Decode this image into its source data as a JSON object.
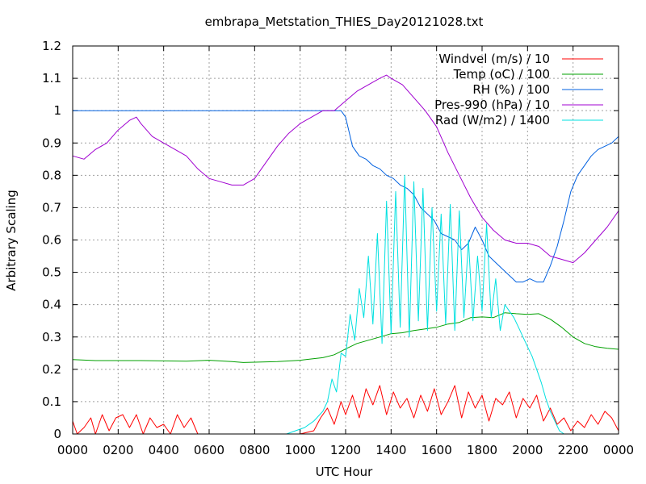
{
  "chart_data": {
    "type": "line",
    "title": "embrapa_Metstation_THIES_Day20121028.txt",
    "xlabel": "UTC Hour",
    "ylabel": "Arbitrary Scaling",
    "xlim": [
      0,
      24
    ],
    "ylim": [
      0,
      1.2
    ],
    "x_ticks": [
      0,
      2,
      4,
      6,
      8,
      10,
      12,
      14,
      16,
      18,
      20,
      22,
      24
    ],
    "x_tick_labels": [
      "0000",
      "0200",
      "0400",
      "0600",
      "0800",
      "1000",
      "1200",
      "1400",
      "1600",
      "1800",
      "2000",
      "2200",
      "0000"
    ],
    "y_ticks": [
      0,
      0.1,
      0.2,
      0.3,
      0.4,
      0.5,
      0.6,
      0.7,
      0.8,
      0.9,
      1,
      1.1,
      1.2
    ],
    "y_tick_labels": [
      "0",
      "0.1",
      "0.2",
      "0.3",
      "0.4",
      "0.5",
      "0.6",
      "0.7",
      "0.8",
      "0.9",
      "1",
      "1.1",
      "1.2"
    ],
    "grid": true,
    "legend_position": "top-right",
    "series": [
      {
        "name": "Windvel (m/s) / 10",
        "color": "#ff0000",
        "x": [
          0,
          0.2,
          0.5,
          0.8,
          1.0,
          1.3,
          1.6,
          1.9,
          2.2,
          2.5,
          2.8,
          3.1,
          3.4,
          3.7,
          4.0,
          4.3,
          4.6,
          4.9,
          5.2,
          5.5,
          6,
          7,
          8,
          9,
          10,
          10.6,
          10.9,
          11.2,
          11.5,
          11.8,
          12.0,
          12.3,
          12.6,
          12.9,
          13.2,
          13.5,
          13.8,
          14.1,
          14.4,
          14.7,
          15.0,
          15.3,
          15.6,
          15.9,
          16.2,
          16.5,
          16.8,
          17.1,
          17.4,
          17.7,
          18.0,
          18.3,
          18.6,
          18.9,
          19.2,
          19.5,
          19.8,
          20.1,
          20.4,
          20.7,
          21.0,
          21.3,
          21.6,
          21.9,
          22.2,
          22.5,
          22.8,
          23.1,
          23.4,
          23.7,
          24
        ],
        "y": [
          0.04,
          0.0,
          0.02,
          0.05,
          0.0,
          0.06,
          0.01,
          0.05,
          0.06,
          0.02,
          0.06,
          0.0,
          0.05,
          0.02,
          0.03,
          0.0,
          0.06,
          0.02,
          0.05,
          0.0,
          0.0,
          0.0,
          0.0,
          0.0,
          0.0,
          0.01,
          0.05,
          0.08,
          0.03,
          0.1,
          0.06,
          0.12,
          0.05,
          0.14,
          0.09,
          0.15,
          0.06,
          0.13,
          0.08,
          0.11,
          0.05,
          0.12,
          0.07,
          0.14,
          0.06,
          0.1,
          0.15,
          0.05,
          0.13,
          0.08,
          0.12,
          0.04,
          0.11,
          0.09,
          0.13,
          0.05,
          0.11,
          0.08,
          0.12,
          0.04,
          0.08,
          0.03,
          0.05,
          0.01,
          0.04,
          0.02,
          0.06,
          0.03,
          0.07,
          0.05,
          0.01
        ]
      },
      {
        "name": "Temp (oC) / 100",
        "color": "#00a000",
        "x": [
          0,
          1,
          2,
          3,
          4,
          5,
          6,
          7,
          7.5,
          8,
          9,
          10,
          11,
          11.5,
          12,
          12.5,
          13,
          13.5,
          14,
          14.5,
          15,
          15.5,
          16,
          16.5,
          17,
          17.5,
          18,
          18.5,
          19,
          19.5,
          20,
          20.5,
          21,
          21.5,
          22,
          22.5,
          23,
          23.5,
          24
        ],
        "y": [
          0.23,
          0.227,
          0.227,
          0.227,
          0.226,
          0.225,
          0.228,
          0.224,
          0.221,
          0.222,
          0.224,
          0.228,
          0.236,
          0.245,
          0.263,
          0.28,
          0.29,
          0.3,
          0.31,
          0.313,
          0.32,
          0.325,
          0.33,
          0.34,
          0.345,
          0.36,
          0.362,
          0.36,
          0.375,
          0.372,
          0.37,
          0.372,
          0.355,
          0.33,
          0.3,
          0.28,
          0.27,
          0.265,
          0.262
        ]
      },
      {
        "name": "RH (%) / 100",
        "color": "#0060e0",
        "x": [
          0,
          2,
          4,
          6,
          8,
          10,
          11.5,
          11.8,
          12.0,
          12.3,
          12.6,
          12.9,
          13.2,
          13.5,
          13.8,
          14.1,
          14.4,
          14.7,
          15.0,
          15.3,
          15.6,
          15.9,
          16.2,
          16.5,
          16.8,
          17.1,
          17.4,
          17.7,
          18.0,
          18.3,
          18.6,
          18.9,
          19.2,
          19.5,
          19.8,
          20.1,
          20.4,
          20.7,
          21.0,
          21.3,
          21.6,
          21.9,
          22.2,
          22.5,
          22.8,
          23.1,
          23.4,
          23.7,
          24
        ],
        "y": [
          1.0,
          1.0,
          1.0,
          1.0,
          1.0,
          1.0,
          1.0,
          1.0,
          0.98,
          0.89,
          0.86,
          0.85,
          0.83,
          0.82,
          0.8,
          0.79,
          0.77,
          0.76,
          0.74,
          0.7,
          0.68,
          0.66,
          0.62,
          0.61,
          0.6,
          0.57,
          0.59,
          0.64,
          0.6,
          0.55,
          0.53,
          0.51,
          0.49,
          0.47,
          0.47,
          0.48,
          0.47,
          0.47,
          0.52,
          0.58,
          0.66,
          0.75,
          0.8,
          0.83,
          0.86,
          0.88,
          0.89,
          0.9,
          0.92
        ]
      },
      {
        "name": "Pres-990 (hPa) / 10",
        "color": "#a000d0",
        "x": [
          0,
          0.5,
          1.0,
          1.5,
          2.0,
          2.5,
          2.8,
          3.0,
          3.5,
          4.0,
          4.5,
          5.0,
          5.5,
          6.0,
          6.5,
          7.0,
          7.5,
          8.0,
          8.5,
          9.0,
          9.5,
          10.0,
          10.5,
          11.0,
          11.5,
          12.0,
          12.5,
          13.0,
          13.5,
          13.8,
          14.0,
          14.5,
          15.0,
          15.5,
          16.0,
          16.5,
          17.0,
          17.5,
          18.0,
          18.5,
          19.0,
          19.5,
          20.0,
          20.5,
          21.0,
          21.5,
          22.0,
          22.5,
          23.0,
          23.5,
          24
        ],
        "y": [
          0.86,
          0.85,
          0.88,
          0.9,
          0.94,
          0.97,
          0.98,
          0.96,
          0.92,
          0.9,
          0.88,
          0.86,
          0.82,
          0.79,
          0.78,
          0.77,
          0.77,
          0.79,
          0.84,
          0.89,
          0.93,
          0.96,
          0.98,
          1.0,
          1.0,
          1.03,
          1.06,
          1.08,
          1.1,
          1.11,
          1.1,
          1.08,
          1.04,
          1.0,
          0.95,
          0.87,
          0.8,
          0.73,
          0.67,
          0.63,
          0.6,
          0.59,
          0.59,
          0.58,
          0.55,
          0.54,
          0.53,
          0.56,
          0.6,
          0.64,
          0.69
        ]
      },
      {
        "name": "Rad (W/m2) / 1400",
        "color": "#00e0e0",
        "x": [
          0,
          9.4,
          9.8,
          10.2,
          10.6,
          11.0,
          11.2,
          11.4,
          11.6,
          11.8,
          12.0,
          12.2,
          12.4,
          12.6,
          12.8,
          13.0,
          13.2,
          13.4,
          13.6,
          13.8,
          14.0,
          14.2,
          14.4,
          14.6,
          14.8,
          15.0,
          15.2,
          15.4,
          15.6,
          15.8,
          16.0,
          16.2,
          16.4,
          16.6,
          16.8,
          17.0,
          17.2,
          17.4,
          17.6,
          17.8,
          18.0,
          18.2,
          18.4,
          18.6,
          18.8,
          19.0,
          19.2,
          19.4,
          19.6,
          19.8,
          20.0,
          20.2,
          20.4,
          20.6,
          20.8,
          21.0,
          21.2,
          21.4,
          21.6,
          24
        ],
        "y": [
          0.0,
          0.0,
          0.01,
          0.02,
          0.04,
          0.07,
          0.1,
          0.17,
          0.13,
          0.25,
          0.24,
          0.37,
          0.29,
          0.45,
          0.36,
          0.55,
          0.34,
          0.62,
          0.28,
          0.72,
          0.31,
          0.75,
          0.33,
          0.8,
          0.3,
          0.78,
          0.35,
          0.76,
          0.32,
          0.7,
          0.38,
          0.68,
          0.34,
          0.71,
          0.32,
          0.69,
          0.36,
          0.6,
          0.35,
          0.55,
          0.38,
          0.65,
          0.36,
          0.48,
          0.32,
          0.4,
          0.38,
          0.36,
          0.33,
          0.3,
          0.27,
          0.24,
          0.2,
          0.16,
          0.11,
          0.07,
          0.04,
          0.01,
          0.0,
          0.0
        ]
      }
    ]
  }
}
